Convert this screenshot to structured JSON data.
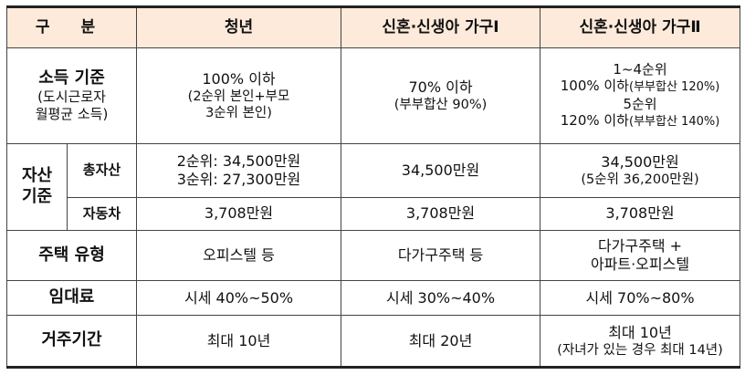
{
  "header": {
    "col1": "구 분",
    "col2": "청년",
    "col3": "신혼·신생아 가구Ⅰ",
    "col4": "신혼·신생아 가구Ⅱ"
  },
  "income": {
    "label": "소득 기준",
    "label_sub1": "(도시근로자",
    "label_sub2": "월평균 소득)",
    "youth_line1": "100% 이하",
    "youth_line2": "(2순위 본인+부모",
    "youth_line3": "3순위 본인)",
    "g1_line1": "70% 이하",
    "g1_line2": "(부부합산 90%)",
    "g2_line1": "1~4순위",
    "g2_line2": "100% 이하",
    "g2_line2_note": "(부부합산 120%)",
    "g2_line3": "5순위",
    "g2_line4": "120% 이하",
    "g2_line4_note": "(부부합산 140%)"
  },
  "asset": {
    "label_line1": "자산",
    "label_line2": "기준",
    "total": {
      "label": "총자산",
      "youth_line1": "2순위: 34,500만원",
      "youth_line2": "3순위: 27,300만원",
      "g1": "34,500만원",
      "g2_line1": "34,500만원",
      "g2_line2": "(5순위 36,200만원)"
    },
    "car": {
      "label": "자동차",
      "youth": "3,708만원",
      "g1": "3,708만원",
      "g2": "3,708만원"
    }
  },
  "housing": {
    "label": "주택 유형",
    "youth": "오피스텔 등",
    "g1": "다가구주택 등",
    "g2_line1": "다가구주택 +",
    "g2_line2": "아파트·오피스텔"
  },
  "rent": {
    "label": "임대료",
    "youth": "시세 40%~50%",
    "g1": "시세 30%~40%",
    "g2": "시세 70%~80%"
  },
  "period": {
    "label": "거주기간",
    "youth": "최대 10년",
    "g1": "최대 20년",
    "g2_line1": "최대 10년",
    "g2_line2": "(자녀가 있는 경우 최대 14년)"
  }
}
